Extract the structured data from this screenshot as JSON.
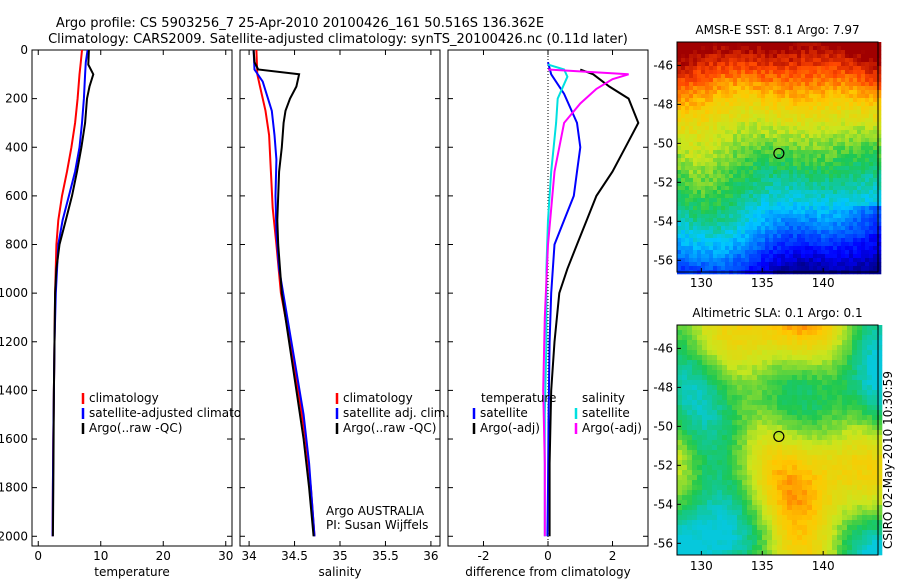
{
  "header": {
    "line1": "Argo profile: CS 5903256_7 25-Apr-2010 20100426_161 50.516S 136.362E",
    "line2": "Climatology: CARS2009. Satellite-adjusted climatology: synTS_20100426.nc (0.11d later)"
  },
  "side_text": "CSIRO 02-May-2010 10:30:59",
  "chart_data": [
    {
      "id": "temperature",
      "type": "line",
      "xlabel": "temperature",
      "ylabel": "",
      "xlim": [
        -1,
        31
      ],
      "ylim": [
        2040,
        0
      ],
      "x_ticks": [
        "0",
        "10",
        "20",
        "30"
      ],
      "x_tick_values": [
        0,
        10,
        20,
        30
      ],
      "y_ticks": [
        "0",
        "200",
        "400",
        "600",
        "800",
        "1000",
        "1200",
        "1400",
        "1600",
        "1800",
        "2000"
      ],
      "y_tick_values": [
        0,
        200,
        400,
        600,
        800,
        1000,
        1200,
        1400,
        1600,
        1800,
        2000
      ],
      "legend": [
        {
          "label": "climatology",
          "color": "#ff0000"
        },
        {
          "label": "satellite-adjusted climatology",
          "color": "#0000ff"
        },
        {
          "label": "Argo(..raw -QC)",
          "color": "#000000"
        }
      ],
      "series": [
        {
          "name": "climatology",
          "color": "#ff0000",
          "x": [
            7.0,
            6.8,
            6.6,
            6.3,
            5.9,
            5.3,
            4.6,
            3.8,
            3.2,
            2.9,
            2.7,
            2.6,
            2.5,
            2.4,
            2.35,
            2.3
          ],
          "y": [
            0,
            50,
            100,
            200,
            300,
            400,
            500,
            600,
            700,
            800,
            1000,
            1200,
            1400,
            1600,
            1800,
            2000
          ]
        },
        {
          "name": "satellite-adjusted climatology",
          "color": "#0000ff",
          "x": [
            7.9,
            7.6,
            7.5,
            7.3,
            7.0,
            6.6,
            5.9,
            4.9,
            3.9,
            3.2,
            2.8,
            2.6,
            2.5,
            2.4,
            2.35,
            2.3
          ],
          "y": [
            0,
            50,
            100,
            200,
            300,
            400,
            500,
            600,
            700,
            800,
            1000,
            1200,
            1400,
            1600,
            1800,
            2000
          ]
        },
        {
          "name": "Argo(..raw -QC)",
          "color": "#000000",
          "x": [
            8.1,
            8.0,
            8.8,
            8.2,
            7.8,
            7.5,
            6.9,
            6.2,
            5.4,
            4.4,
            3.4,
            2.9,
            2.7,
            2.6,
            2.5,
            2.45,
            2.4,
            2.35
          ],
          "y": [
            0,
            60,
            100,
            150,
            200,
            300,
            400,
            500,
            600,
            700,
            800,
            900,
            1000,
            1200,
            1400,
            1600,
            1800,
            2000
          ]
        }
      ]
    },
    {
      "id": "salinity",
      "type": "line",
      "xlabel": "salinity",
      "ylabel": "",
      "xlim": [
        33.9,
        36.1
      ],
      "ylim": [
        2040,
        0
      ],
      "x_ticks": [
        "34",
        "34.5",
        "35",
        "35.5",
        "36"
      ],
      "x_tick_values": [
        34,
        34.5,
        35,
        35.5,
        36
      ],
      "legend": [
        {
          "label": "climatology",
          "color": "#ff0000"
        },
        {
          "label": "satellite adj. clim.",
          "color": "#0000ff"
        },
        {
          "label": "Argo(..raw -QC)",
          "color": "#000000"
        }
      ],
      "annotation": [
        "Argo AUSTRALIA",
        "PI: Susan Wijffels"
      ],
      "series": [
        {
          "name": "climatology",
          "color": "#ff0000",
          "x": [
            34.08,
            34.09,
            34.12,
            34.18,
            34.22,
            34.24,
            34.26,
            34.3,
            34.35,
            34.45,
            34.54,
            34.62,
            34.68,
            34.72
          ],
          "y": [
            0,
            100,
            150,
            250,
            350,
            500,
            650,
            800,
            1000,
            1200,
            1400,
            1600,
            1800,
            2000
          ]
        },
        {
          "name": "satellite adj. clim.",
          "color": "#0000ff",
          "x": [
            34.05,
            34.06,
            34.15,
            34.25,
            34.28,
            34.3,
            34.29,
            34.3,
            34.33,
            34.42,
            34.51,
            34.6,
            34.66,
            34.72
          ],
          "y": [
            0,
            80,
            130,
            250,
            350,
            450,
            600,
            750,
            900,
            1100,
            1300,
            1500,
            1700,
            2000
          ]
        },
        {
          "name": "Argo(..raw -QC)",
          "color": "#000000",
          "x": [
            34.05,
            34.06,
            34.1,
            34.55,
            34.52,
            34.45,
            34.4,
            34.38,
            34.36,
            34.33,
            34.32,
            34.31,
            34.32,
            34.36,
            34.44,
            34.52,
            34.6,
            34.66,
            34.71
          ],
          "y": [
            0,
            50,
            80,
            100,
            150,
            200,
            250,
            300,
            400,
            500,
            600,
            700,
            800,
            1000,
            1200,
            1400,
            1600,
            1800,
            2000
          ]
        }
      ]
    },
    {
      "id": "difference",
      "type": "line",
      "xlabel": "difference from climatology",
      "ylabel": "",
      "xlim": [
        -3.1,
        3.1
      ],
      "ylim": [
        2040,
        0
      ],
      "x_ticks": [
        "-2",
        "0",
        "2"
      ],
      "x_tick_values": [
        -2,
        0,
        2
      ],
      "legend_groups": [
        {
          "title": "temperature",
          "items": [
            {
              "label": "satellite",
              "color": "#0000ff"
            },
            {
              "label": "Argo(-adj)",
              "color": "#000000"
            }
          ]
        },
        {
          "title": "salinity",
          "items": [
            {
              "label": "satellite",
              "color": "#00e0e0"
            },
            {
              "label": "Argo(-adj)",
              "color": "#ff00ff"
            }
          ]
        }
      ],
      "series": [
        {
          "name": "temperature satellite",
          "color": "#0000ff",
          "x": [
            0.0,
            0.1,
            0.5,
            0.9,
            1.0,
            0.9,
            0.8,
            0.5,
            0.2,
            0.1,
            0.05,
            0.02,
            0.0,
            -0.02
          ],
          "y": [
            50,
            100,
            180,
            300,
            400,
            500,
            600,
            700,
            800,
            1000,
            1200,
            1500,
            1800,
            2000
          ]
        },
        {
          "name": "temperature Argo(-adj)",
          "color": "#000000",
          "x": [
            1.0,
            1.4,
            1.9,
            2.5,
            2.8,
            2.4,
            2.0,
            1.5,
            1.2,
            0.9,
            0.6,
            0.35,
            0.2,
            0.1,
            0.05,
            0.05
          ],
          "y": [
            80,
            100,
            150,
            200,
            300,
            400,
            500,
            600,
            700,
            800,
            900,
            1000,
            1200,
            1400,
            1700,
            2000
          ]
        },
        {
          "name": "salinity satellite",
          "color": "#00e0e0",
          "x": [
            0.0,
            0.5,
            0.6,
            0.3,
            0.25,
            0.1,
            0.0,
            -0.05,
            -0.05,
            -0.1,
            -0.1,
            -0.1
          ],
          "y": [
            60,
            80,
            110,
            200,
            300,
            500,
            700,
            900,
            1200,
            1500,
            1800,
            2000
          ]
        },
        {
          "name": "salinity Argo(-adj)",
          "color": "#ff00ff",
          "x": [
            0.0,
            2.5,
            2.0,
            1.5,
            1.0,
            0.5,
            0.2,
            0.0,
            -0.1,
            -0.15,
            -0.1,
            -0.1
          ],
          "y": [
            80,
            100,
            120,
            160,
            220,
            300,
            500,
            800,
            1100,
            1400,
            1700,
            2000
          ]
        }
      ]
    },
    {
      "id": "sst_map",
      "type": "heatmap",
      "title": "AMSR-E SST: 8.1 Argo: 7.97",
      "xlim": [
        128,
        144.5
      ],
      "ylim": [
        -56.6,
        -44.8
      ],
      "x_ticks": [
        "130",
        "135",
        "140"
      ],
      "x_tick_values": [
        130,
        135,
        140
      ],
      "y_ticks": [
        "-46",
        "-48",
        "-50",
        "-52",
        "-54",
        "-56"
      ],
      "y_tick_values": [
        -46,
        -48,
        -50,
        -52,
        -54,
        -56
      ],
      "profile_lon": 136.362,
      "profile_lat": -50.516
    },
    {
      "id": "sla_map",
      "type": "heatmap",
      "title": "Altimetric SLA: 0.1 Argo: 0.1",
      "xlim": [
        128,
        144.5
      ],
      "ylim": [
        -56.6,
        -44.8
      ],
      "x_ticks": [
        "130",
        "135",
        "140"
      ],
      "x_tick_values": [
        130,
        135,
        140
      ],
      "y_ticks": [
        "-46",
        "-48",
        "-50",
        "-52",
        "-54",
        "-56"
      ],
      "y_tick_values": [
        -46,
        -48,
        -50,
        -52,
        -54,
        -56
      ],
      "profile_lon": 136.362,
      "profile_lat": -50.516
    }
  ]
}
